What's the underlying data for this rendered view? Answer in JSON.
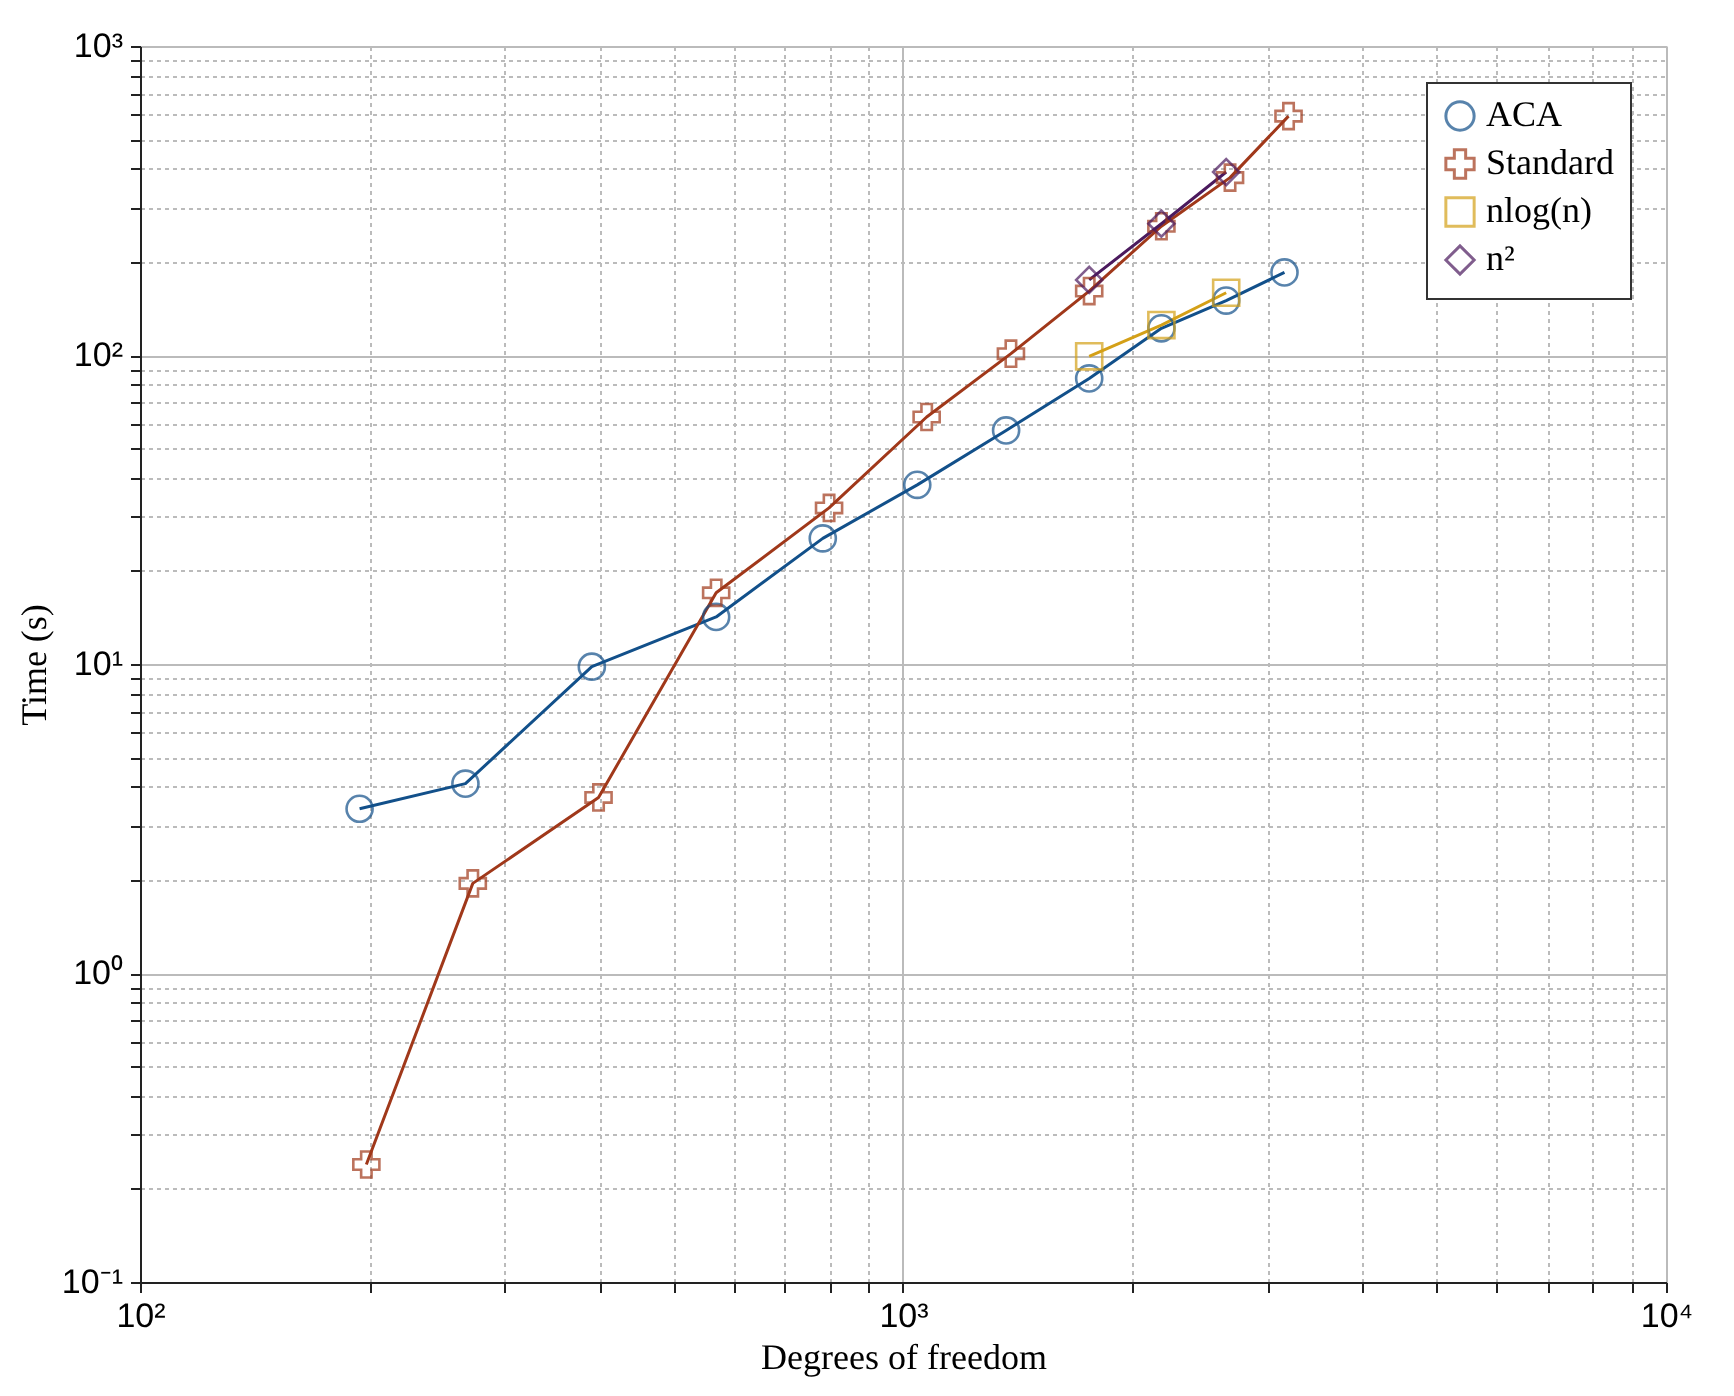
{
  "chart_data": {
    "type": "line",
    "xlabel": "Degrees of freedom",
    "ylabel": "Time (s)",
    "log": "xy",
    "grid": true,
    "legend": "top right",
    "xlim": [
      100,
      10000
    ],
    "ylim": [
      0.1,
      1000
    ],
    "xticks": [
      {
        "value": 100,
        "label": "10²"
      },
      {
        "value": 200,
        "label": null
      },
      {
        "value": 300,
        "label": null
      },
      {
        "value": 400,
        "label": null
      },
      {
        "value": 500,
        "label": null
      },
      {
        "value": 600,
        "label": null
      },
      {
        "value": 700,
        "label": null
      },
      {
        "value": 800,
        "label": null
      },
      {
        "value": 900,
        "label": null
      },
      {
        "value": 1000,
        "label": "10³"
      },
      {
        "value": 2000,
        "label": null
      },
      {
        "value": 3000,
        "label": null
      },
      {
        "value": 4000,
        "label": null
      },
      {
        "value": 5000,
        "label": null
      },
      {
        "value": 6000,
        "label": null
      },
      {
        "value": 7000,
        "label": null
      },
      {
        "value": 8000,
        "label": null
      },
      {
        "value": 9000,
        "label": null
      },
      {
        "value": 10000,
        "label": "10⁴"
      }
    ],
    "yticks": [
      {
        "value": 0.1,
        "label": "10⁻¹"
      },
      {
        "value": 0.2,
        "label": null
      },
      {
        "value": 0.3,
        "label": null
      },
      {
        "value": 0.4,
        "label": null
      },
      {
        "value": 0.5,
        "label": null
      },
      {
        "value": 0.6,
        "label": null
      },
      {
        "value": 0.7,
        "label": null
      },
      {
        "value": 0.8,
        "label": null
      },
      {
        "value": 0.9,
        "label": null
      },
      {
        "value": 1,
        "label": "10⁰"
      },
      {
        "value": 2,
        "label": null
      },
      {
        "value": 3,
        "label": null
      },
      {
        "value": 4,
        "label": null
      },
      {
        "value": 5,
        "label": null
      },
      {
        "value": 6,
        "label": null
      },
      {
        "value": 7,
        "label": null
      },
      {
        "value": 8,
        "label": null
      },
      {
        "value": 9,
        "label": null
      },
      {
        "value": 10,
        "label": "10¹"
      },
      {
        "value": 20,
        "label": null
      },
      {
        "value": 30,
        "label": null
      },
      {
        "value": 40,
        "label": null
      },
      {
        "value": 50,
        "label": null
      },
      {
        "value": 60,
        "label": null
      },
      {
        "value": 70,
        "label": null
      },
      {
        "value": 80,
        "label": null
      },
      {
        "value": 90,
        "label": null
      },
      {
        "value": 100,
        "label": "10²"
      },
      {
        "value": 200,
        "label": null
      },
      {
        "value": 300,
        "label": null
      },
      {
        "value": 400,
        "label": null
      },
      {
        "value": 500,
        "label": null
      },
      {
        "value": 600,
        "label": null
      },
      {
        "value": 700,
        "label": null
      },
      {
        "value": 800,
        "label": null
      },
      {
        "value": 900,
        "label": null
      },
      {
        "value": 1000,
        "label": "10³"
      }
    ],
    "series": [
      {
        "name": "ACA",
        "color": "#12508a",
        "marker": "circle",
        "x": [
          194,
          267,
          391,
          569,
          785,
          1044,
          1365,
          1754,
          2181,
          2652,
          3162
        ],
        "values": [
          3.4,
          4.1,
          9.8,
          14.2,
          25.5,
          38,
          57,
          84,
          122,
          150,
          185
        ]
      },
      {
        "name": "Standard",
        "color": "#a0381a",
        "marker": "cross",
        "x": [
          198,
          273,
          399,
          569,
          800,
          1074,
          1385,
          1754,
          2181,
          2683,
          3201
        ],
        "values": [
          0.24,
          1.95,
          3.7,
          17,
          32,
          63,
          101,
          161,
          261,
          375,
          593
        ]
      },
      {
        "name": "nlog(n)",
        "color": "#d4a017",
        "marker": "square",
        "x": [
          1754,
          2181,
          2652
        ],
        "values": [
          99,
          125,
          159
        ]
      },
      {
        "name": "n²",
        "color": "#4b1a5e",
        "marker": "diamond",
        "x": [
          1754,
          2181,
          2652
        ],
        "values": [
          175,
          266,
          391
        ]
      }
    ]
  }
}
